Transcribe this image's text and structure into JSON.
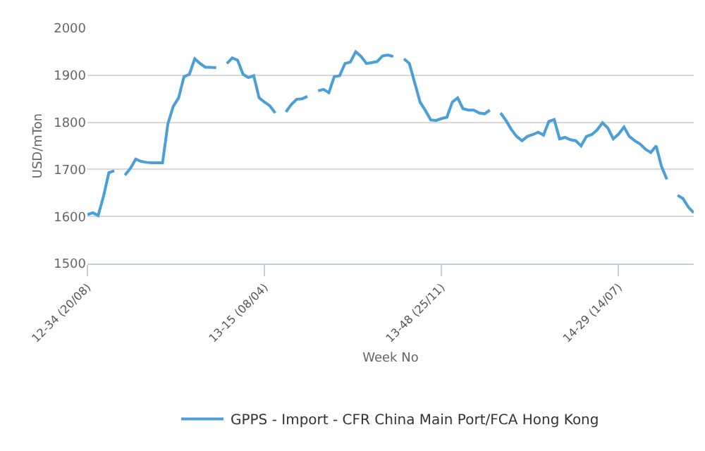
{
  "chart_data": {
    "type": "line",
    "xlabel": "Week No",
    "ylabel": "USD/mTon",
    "categories": [
      "12-34 (20/08)",
      null,
      null,
      null,
      null,
      null,
      null,
      null,
      null,
      null,
      null,
      null,
      null,
      null,
      null,
      null,
      null,
      null,
      null,
      null,
      null,
      null,
      null,
      null,
      null,
      null,
      null,
      null,
      null,
      null,
      null,
      null,
      null,
      "13-15 (08/04)",
      null,
      null,
      null,
      null,
      null,
      null,
      null,
      null,
      null,
      null,
      null,
      null,
      null,
      null,
      null,
      null,
      null,
      null,
      null,
      null,
      null,
      null,
      null,
      null,
      null,
      null,
      null,
      null,
      null,
      null,
      null,
      null,
      "13-48 (25/11)",
      null,
      null,
      null,
      null,
      null,
      null,
      null,
      null,
      null,
      null,
      null,
      null,
      null,
      null,
      null,
      null,
      null,
      null,
      null,
      null,
      null,
      null,
      null,
      null,
      null,
      null,
      null,
      null,
      null,
      null,
      null,
      null,
      "14-29 (14/07)",
      null,
      null,
      null,
      null,
      null,
      null,
      null,
      null,
      null,
      null,
      null,
      null,
      null,
      null
    ],
    "series": [
      {
        "name": "GPPS - Import - CFR China Main Port/FCA Hong Kong",
        "color": "#4b9fd8",
        "values": [
          1604,
          1608,
          1602,
          1643,
          1693,
          1697,
          null,
          1688,
          1702,
          1722,
          1717,
          1715,
          1714,
          1714,
          1714,
          1797,
          1834,
          1852,
          1897,
          1902,
          1935,
          1925,
          1917,
          1917,
          1916,
          null,
          1925,
          1937,
          1932,
          1902,
          1895,
          1899,
          1852,
          1843,
          1835,
          1820,
          null,
          1822,
          1838,
          1849,
          1850,
          1855,
          null,
          1867,
          1870,
          1863,
          1897,
          1899,
          1925,
          1928,
          1950,
          1940,
          1925,
          1927,
          1929,
          1941,
          1943,
          1940,
          null,
          1935,
          1925,
          1884,
          1843,
          1825,
          1805,
          1804,
          1808,
          1811,
          1843,
          1852,
          1829,
          1826,
          1826,
          1820,
          1818,
          1826,
          null,
          1820,
          1804,
          1785,
          1770,
          1761,
          1770,
          1774,
          1779,
          1773,
          1802,
          1806,
          1765,
          1768,
          1763,
          1761,
          1750,
          1770,
          1774,
          1784,
          1799,
          1788,
          1765,
          1775,
          1790,
          1770,
          1761,
          1754,
          1743,
          1736,
          1750,
          1706,
          1679,
          null,
          1645,
          1638,
          1620,
          1608
        ]
      }
    ],
    "ylim": [
      1500,
      2000
    ],
    "yticks": [
      1500,
      1600,
      1700,
      1800,
      1900,
      2000
    ],
    "grid": "y",
    "legend": "bottom",
    "marker": "none",
    "line_style": "solid"
  }
}
